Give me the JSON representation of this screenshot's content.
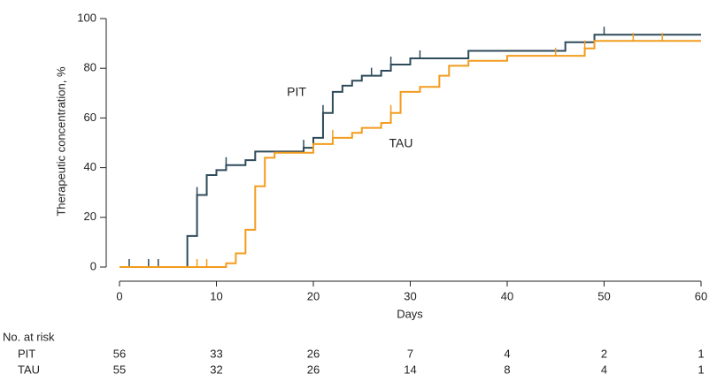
{
  "chart_data": {
    "type": "step",
    "y_label": "Therapeutic concentration, %",
    "x_label": "Days",
    "xlim": [
      0,
      60
    ],
    "xticks": [
      0,
      10,
      20,
      30,
      40,
      50,
      60
    ],
    "ylim": [
      0,
      100
    ],
    "yticks": [
      0,
      20,
      40,
      60,
      80,
      100
    ],
    "series": [
      {
        "name": "PIT",
        "color": "#2e4b5a",
        "x": [
          0,
          7,
          8,
          9,
          10,
          11,
          13,
          14,
          19,
          20,
          21,
          22,
          23,
          24,
          25,
          27,
          28,
          30,
          36,
          46,
          49
        ],
        "values": [
          0,
          12.5,
          29,
          37,
          39,
          41,
          43,
          46.5,
          48,
          52,
          62,
          70.5,
          73,
          75,
          77,
          79,
          81.5,
          84,
          87,
          90.5,
          93.5
        ],
        "censored": [
          1,
          3,
          4,
          8,
          11,
          19,
          21,
          26,
          28,
          31,
          50
        ]
      },
      {
        "name": "TAU",
        "color": "#f39c1e",
        "x": [
          0,
          11,
          12,
          13,
          14,
          15,
          16,
          20,
          22,
          24,
          25,
          27,
          28,
          29,
          31,
          33,
          34,
          36,
          40,
          48,
          49
        ],
        "values": [
          0,
          1.5,
          5.5,
          15,
          32.5,
          44,
          46,
          49.5,
          52,
          54,
          56,
          58,
          62,
          70.5,
          72.5,
          77,
          81,
          83,
          85,
          88,
          91
        ],
        "censored": [
          8,
          9,
          22,
          28,
          45,
          48,
          53,
          56
        ]
      }
    ],
    "risk_table": {
      "title": "No. at risk",
      "rows": [
        {
          "name": "PIT",
          "values": [
            56,
            33,
            26,
            7,
            4,
            2,
            1
          ]
        },
        {
          "name": "TAU",
          "values": [
            55,
            32,
            26,
            14,
            8,
            4,
            1
          ]
        }
      ]
    }
  }
}
